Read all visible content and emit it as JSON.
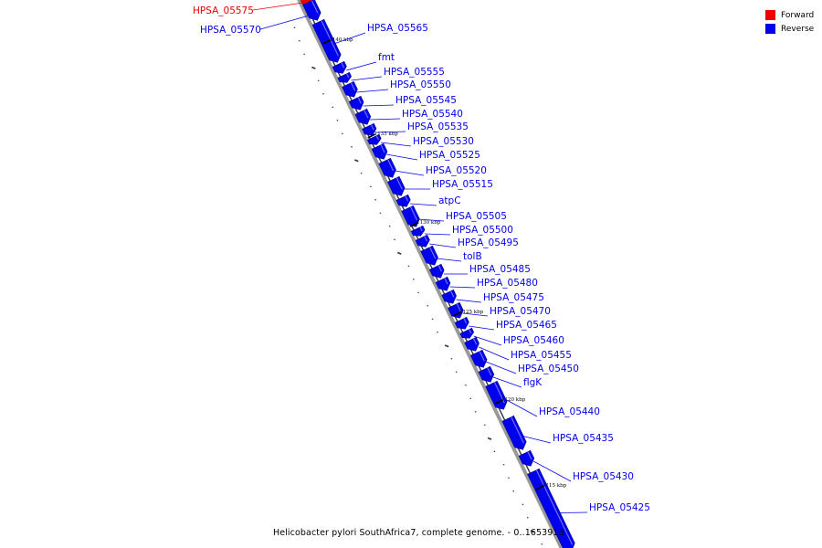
{
  "legend": {
    "forward_label": "Forward",
    "reverse_label": "Reverse",
    "forward_color": "#ee0000",
    "reverse_color": "#0000ee"
  },
  "caption": "Helicobacter pylori SouthAfrica7, complete genome. - 0..1653913",
  "tick_labels": [
    "1140 kbp",
    "1135 kbp",
    "1130 kbp",
    "1125 kbp",
    "1120 kbp",
    "1115 kbp"
  ],
  "genes": [
    {
      "label": "HPSA_05575",
      "strand": "forward"
    },
    {
      "label": "HPSA_05570",
      "strand": "reverse"
    },
    {
      "label": "HPSA_05565",
      "strand": "reverse"
    },
    {
      "label": "fmt",
      "strand": "reverse"
    },
    {
      "label": "HPSA_05555",
      "strand": "reverse"
    },
    {
      "label": "HPSA_05550",
      "strand": "reverse"
    },
    {
      "label": "HPSA_05545",
      "strand": "reverse"
    },
    {
      "label": "HPSA_05540",
      "strand": "reverse"
    },
    {
      "label": "HPSA_05535",
      "strand": "reverse"
    },
    {
      "label": "HPSA_05530",
      "strand": "reverse"
    },
    {
      "label": "HPSA_05525",
      "strand": "reverse"
    },
    {
      "label": "HPSA_05520",
      "strand": "reverse"
    },
    {
      "label": "HPSA_05515",
      "strand": "reverse"
    },
    {
      "label": "atpC",
      "strand": "reverse"
    },
    {
      "label": "HPSA_05505",
      "strand": "reverse"
    },
    {
      "label": "HPSA_05500",
      "strand": "reverse"
    },
    {
      "label": "HPSA_05495",
      "strand": "reverse"
    },
    {
      "label": "tolB",
      "strand": "reverse"
    },
    {
      "label": "HPSA_05485",
      "strand": "reverse"
    },
    {
      "label": "HPSA_05480",
      "strand": "reverse"
    },
    {
      "label": "HPSA_05475",
      "strand": "reverse"
    },
    {
      "label": "HPSA_05470",
      "strand": "reverse"
    },
    {
      "label": "HPSA_05465",
      "strand": "reverse"
    },
    {
      "label": "HPSA_05460",
      "strand": "reverse"
    },
    {
      "label": "HPSA_05455",
      "strand": "reverse"
    },
    {
      "label": "HPSA_05450",
      "strand": "reverse"
    },
    {
      "label": "flgK",
      "strand": "reverse"
    },
    {
      "label": "HPSA_05440",
      "strand": "reverse"
    },
    {
      "label": "HPSA_05435",
      "strand": "reverse"
    },
    {
      "label": "HPSA_05430",
      "strand": "reverse"
    },
    {
      "label": "HPSA_05425",
      "strand": "reverse"
    }
  ]
}
